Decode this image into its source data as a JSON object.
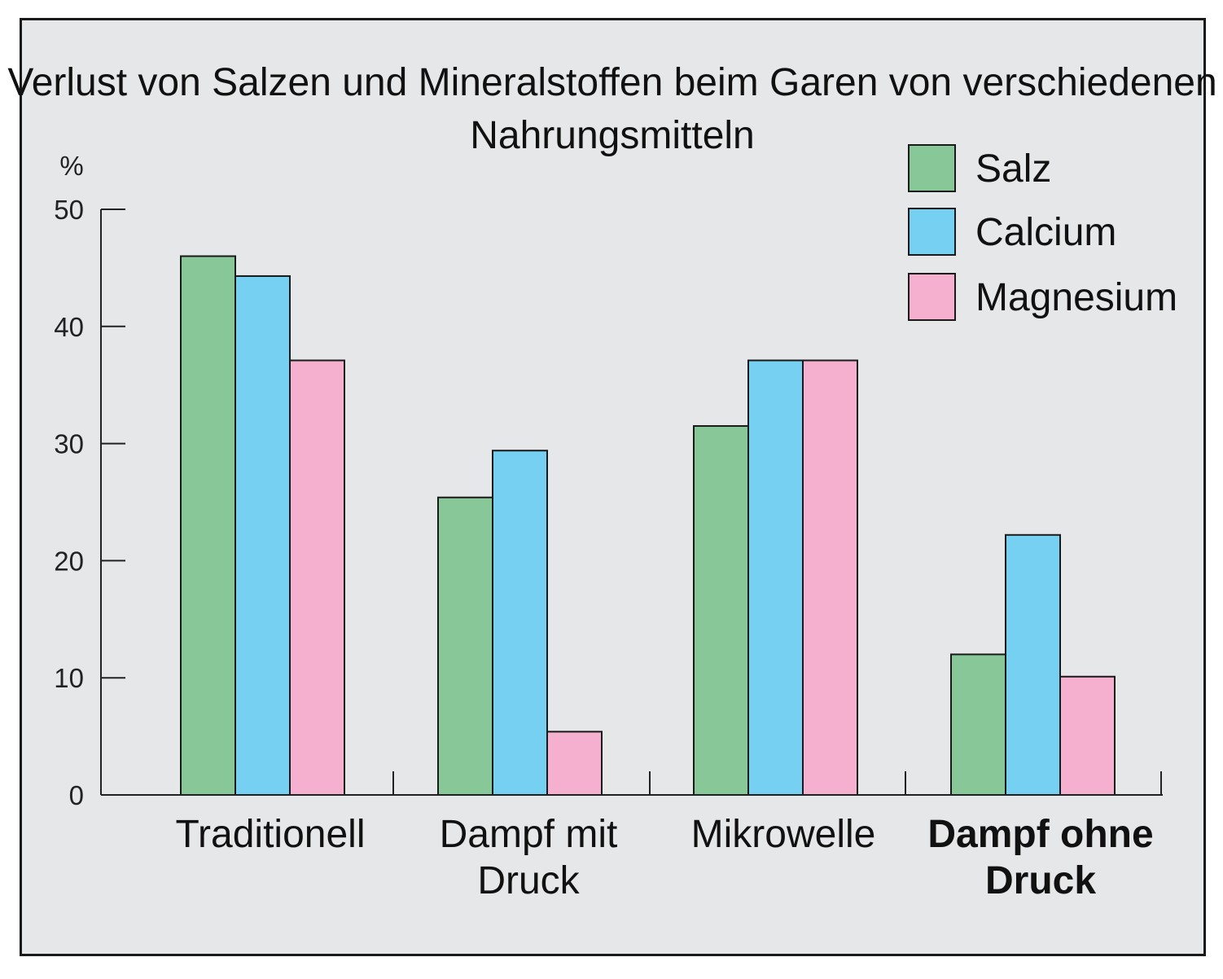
{
  "chart_data": {
    "type": "bar",
    "title_line1": "Verlust von Salzen und Mineralstoffen beim Garen von verschiedenen",
    "title_line2": "Nahrungsmitteln",
    "ylabel": "%",
    "ylim": [
      0,
      50
    ],
    "yticks": [
      "0",
      "10",
      "20",
      "30",
      "40",
      "50"
    ],
    "categories": [
      {
        "line1": "Traditionell",
        "line2": "",
        "bold": false
      },
      {
        "line1": "Dampf mit",
        "line2": "Druck",
        "bold": false
      },
      {
        "line1": "Mikrowelle",
        "line2": "",
        "bold": false
      },
      {
        "line1": "Dampf ohne",
        "line2": "Druck",
        "bold": true
      }
    ],
    "series": [
      {
        "name": "Salz",
        "color": "#88c898",
        "values": [
          46,
          25.4,
          31.5,
          12
        ]
      },
      {
        "name": "Calcium",
        "color": "#75d0f2",
        "values": [
          44.3,
          29.4,
          37.1,
          22.2
        ]
      },
      {
        "name": "Magnesium",
        "color": "#f5b0cf",
        "values": [
          37.1,
          5.4,
          37.1,
          10.1
        ]
      }
    ],
    "legend_position": "top-right"
  }
}
